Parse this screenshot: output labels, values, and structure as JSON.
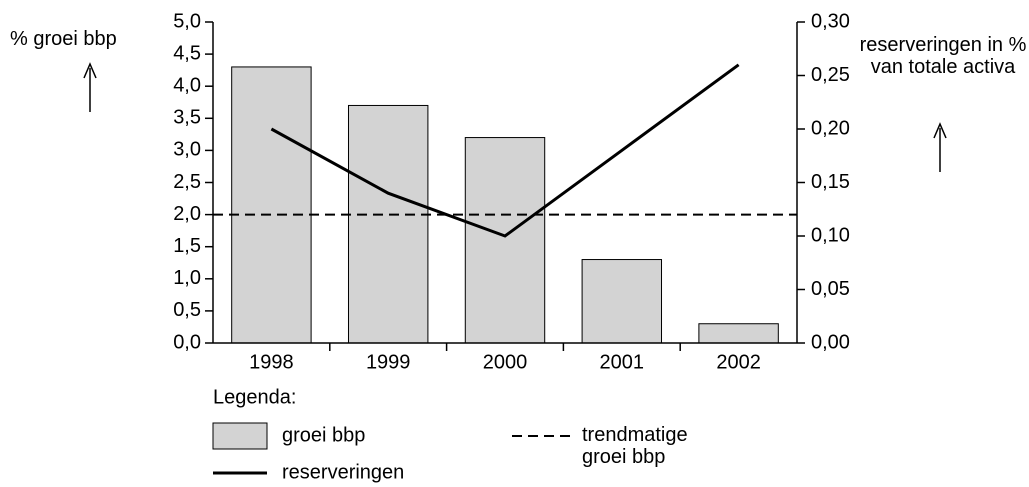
{
  "chart_data": {
    "type": "bar",
    "y_label": "% groei bbp",
    "y2_label": "reserveringen in % van totale activa",
    "legend_title": "Legenda:",
    "categories": [
      "1998",
      "1999",
      "2000",
      "2001",
      "2002"
    ],
    "series": [
      {
        "name": "groei bbp",
        "type": "bar",
        "color": "#d3d3d3",
        "values": [
          4.3,
          3.7,
          3.2,
          1.3,
          0.3
        ]
      },
      {
        "name": "reserveringen",
        "type": "line",
        "axis": "y2",
        "color": "#000000",
        "values": [
          0.2,
          0.14,
          0.1,
          0.18,
          0.26
        ]
      }
    ],
    "reference_line": {
      "name": "trendmatige groei bbp",
      "value": 2.0,
      "style": "dashed",
      "color": "#000000"
    },
    "ylim": [
      0,
      5
    ],
    "yticks": [
      {
        "value": 0,
        "label": "0,0"
      },
      {
        "value": 0.5,
        "label": "0,5"
      },
      {
        "value": 1,
        "label": "1,0"
      },
      {
        "value": 1.5,
        "label": "1,5"
      },
      {
        "value": 2,
        "label": "2,0"
      },
      {
        "value": 2.5,
        "label": "2,5"
      },
      {
        "value": 3,
        "label": "3,0"
      },
      {
        "value": 3.5,
        "label": "3,5"
      },
      {
        "value": 4,
        "label": "4,0"
      },
      {
        "value": 4.5,
        "label": "4,5"
      },
      {
        "value": 5,
        "label": "5,0"
      }
    ],
    "y2lim": [
      0,
      0.3
    ],
    "y2ticks": [
      {
        "value": 0,
        "label": "0,00"
      },
      {
        "value": 0.05,
        "label": "0,05"
      },
      {
        "value": 0.1,
        "label": "0,10"
      },
      {
        "value": 0.15,
        "label": "0,15"
      },
      {
        "value": 0.2,
        "label": "0,20"
      },
      {
        "value": 0.25,
        "label": "0,25"
      },
      {
        "value": 0.3,
        "label": "0,30"
      }
    ],
    "grid": false
  }
}
